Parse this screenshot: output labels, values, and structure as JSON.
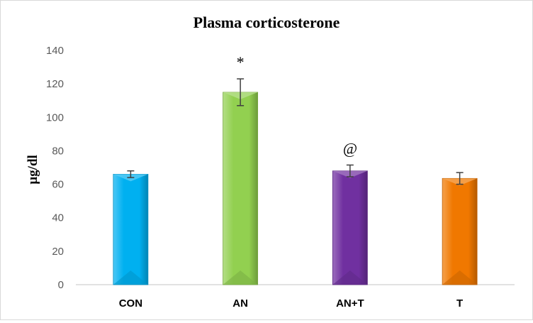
{
  "chart_data": {
    "type": "bar",
    "title": "Plasma corticosterone",
    "ylabel": "µg/dl",
    "xlabel": "",
    "ylim": [
      0,
      140
    ],
    "yticks": [
      0,
      20,
      40,
      60,
      80,
      100,
      120,
      140
    ],
    "grid": false,
    "legend": "none",
    "categories": [
      "CON",
      "AN",
      "AN+T",
      "T"
    ],
    "values": [
      66,
      115,
      68,
      63.5
    ],
    "errors": [
      2,
      8,
      3.5,
      3.5
    ],
    "annotations": [
      "",
      "*",
      "@",
      ""
    ],
    "colors": [
      "#00b0f0",
      "#92d050",
      "#7030a0",
      "#f07800"
    ]
  }
}
